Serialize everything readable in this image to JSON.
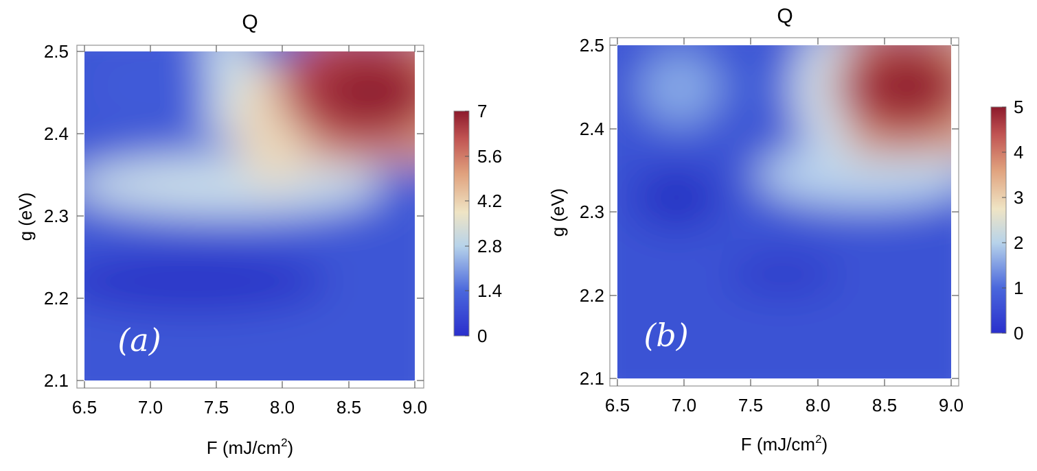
{
  "chart_data": [
    {
      "type": "heatmap",
      "title": "Q",
      "xlabel": "F (mJ/cm",
      "xlabel_sup": "2",
      "xlabel_end": ")",
      "ylabel": "g (eV)",
      "xlim": [
        6.5,
        9.0
      ],
      "ylim": [
        2.1,
        2.5
      ],
      "x_ticks": [
        "6.5",
        "7.0",
        "7.5",
        "8.0",
        "8.5",
        "9.0"
      ],
      "y_ticks": [
        "2.1",
        "2.2",
        "2.3",
        "2.4",
        "2.5"
      ],
      "panel_label": "(a)",
      "colorbar": {
        "min": 0,
        "max": 7,
        "ticks": [
          "0",
          "1.4",
          "2.8",
          "4.2",
          "5.6",
          "7"
        ]
      },
      "features": [
        {
          "x": 8.65,
          "y": 2.45,
          "value": 7.0,
          "label": "maximum"
        },
        {
          "x": 7.3,
          "y": 2.225,
          "value": 0.0,
          "label": "minimum"
        }
      ]
    },
    {
      "type": "heatmap",
      "title": "Q",
      "xlabel": "F (mJ/cm",
      "xlabel_sup": "2",
      "xlabel_end": ")",
      "ylabel": "g (eV)",
      "xlim": [
        6.5,
        9.0
      ],
      "ylim": [
        2.1,
        2.5
      ],
      "x_ticks": [
        "6.5",
        "7.0",
        "7.5",
        "8.0",
        "8.5",
        "9.0"
      ],
      "y_ticks": [
        "2.1",
        "2.2",
        "2.3",
        "2.4",
        "2.5"
      ],
      "panel_label": "(b)",
      "colorbar": {
        "min": 0,
        "max": 5,
        "ticks": [
          "0",
          "1",
          "2",
          "3",
          "4",
          "5"
        ]
      },
      "features": [
        {
          "x": 8.65,
          "y": 2.45,
          "value": 5.0,
          "label": "maximum"
        },
        {
          "x": 6.9,
          "y": 2.32,
          "value": 0.0,
          "label": "minimum"
        }
      ]
    }
  ]
}
